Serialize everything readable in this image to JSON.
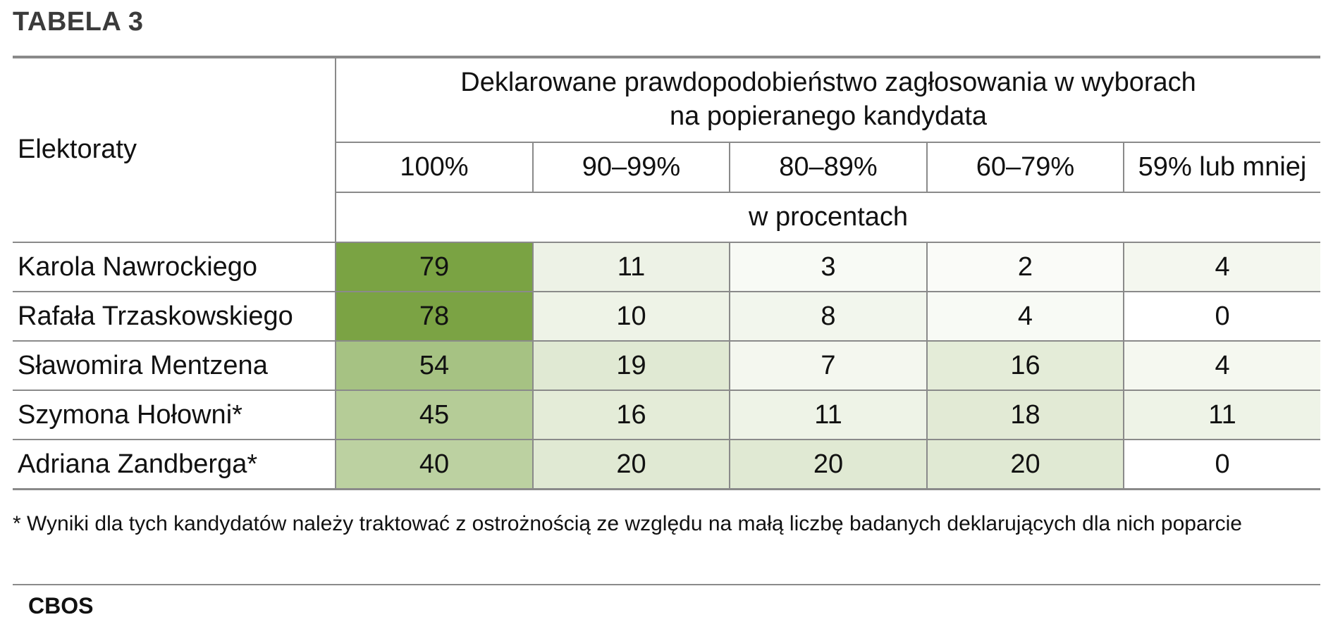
{
  "title": "TABELA 3",
  "header": {
    "row_label": "Elektoraty",
    "super_line1": "Deklarowane prawdopodobieństwo zagłosowania w wyborach",
    "super_line2": "na popieranego kandydata",
    "columns": [
      "100%",
      "90–99%",
      "80–89%",
      "60–79%",
      "59% lub mniej"
    ],
    "unit": "w procentach"
  },
  "rows": [
    {
      "label": "Karola Nawrockiego",
      "values": [
        "79",
        "11",
        "3",
        "2",
        "4"
      ],
      "colors": [
        "#7aa343",
        "#edf2e6",
        "#f8faf5",
        "#fafbf8",
        "#f4f7ef"
      ]
    },
    {
      "label": "Rafała Trzaskowskiego",
      "values": [
        "78",
        "10",
        "8",
        "4",
        "0"
      ],
      "colors": [
        "#7ba344",
        "#eef3e7",
        "#f2f6ed",
        "#f8faf5",
        "#ffffff"
      ]
    },
    {
      "label": "Sławomira Mentzena",
      "values": [
        "54",
        "19",
        "7",
        "16",
        "4"
      ],
      "colors": [
        "#a6c283",
        "#e0e9d3",
        "#f4f7ef",
        "#e4ecd8",
        "#f5f8f0"
      ]
    },
    {
      "label": "Szymona Hołowni*",
      "values": [
        "45",
        "16",
        "11",
        "18",
        "11"
      ],
      "colors": [
        "#b5cc97",
        "#e4ecd8",
        "#eef3e7",
        "#e2ead5",
        "#eef3e7"
      ]
    },
    {
      "label": "Adriana Zandberga*",
      "values": [
        "40",
        "20",
        "20",
        "20",
        "0"
      ],
      "colors": [
        "#bcd1a1",
        "#e0e9d3",
        "#e0e9d3",
        "#e0e9d3",
        "#ffffff"
      ]
    }
  ],
  "footnote": "* Wyniki dla tych kandydatów należy traktować z ostrożnością ze względu na małą liczbę badanych deklarujących dla nich poparcie",
  "source": "CBOS"
}
